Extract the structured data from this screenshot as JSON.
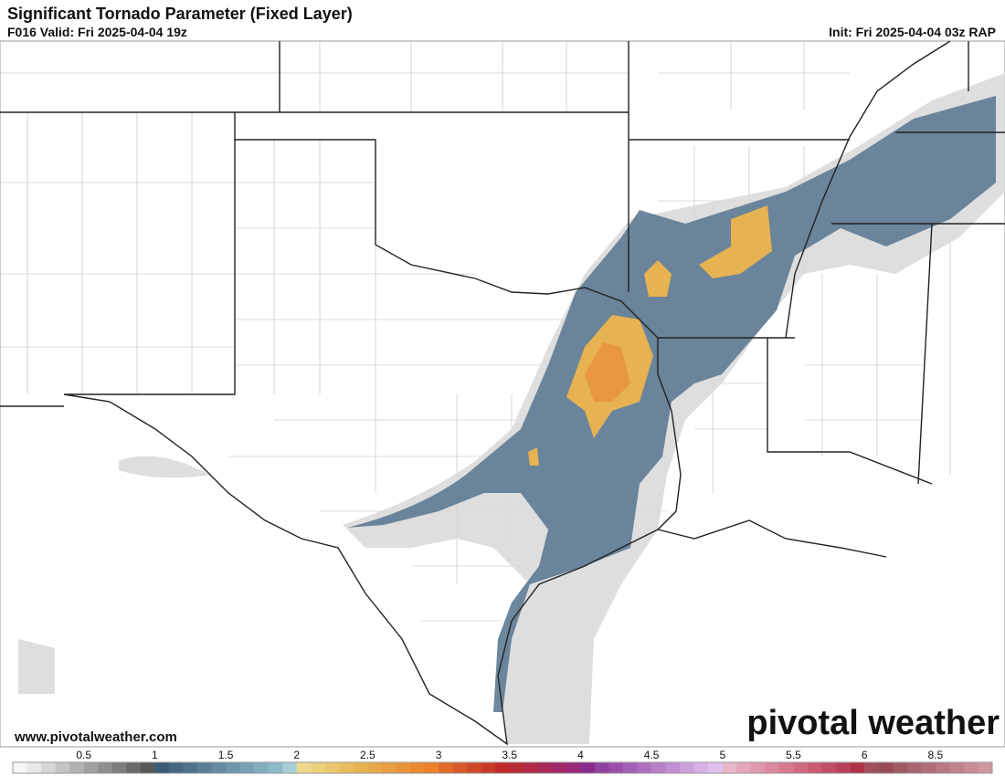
{
  "header": {
    "title": "Significant Tornado Parameter (Fixed Layer)",
    "valid": "F016 Valid: Fri 2025-04-04 19z",
    "init": "Init: Fri 2025-04-04 03z RAP"
  },
  "footer": {
    "website": "www.pivotalweather.com",
    "logo": "pivotal weather"
  },
  "colorbar": {
    "labels": [
      "0.5",
      "1",
      "1.5",
      "2",
      "2.5",
      "3",
      "3.5",
      "4",
      "4.5",
      "5",
      "5.5",
      "6",
      "8.5"
    ],
    "colors": [
      "#f7f7f7",
      "#e8e8e8",
      "#d6d6d6",
      "#c4c4c4",
      "#b2b2b2",
      "#a0a0a0",
      "#8e8e8e",
      "#7c7c7c",
      "#6a6a6a",
      "#585858",
      "#3c5a78",
      "#466682",
      "#50728c",
      "#5a7e96",
      "#648aa0",
      "#6e96aa",
      "#78a2b4",
      "#82aebe",
      "#8cbac8",
      "#a8cfd6",
      "#eed98a",
      "#ecd07c",
      "#eac66e",
      "#e8bc60",
      "#e6b252",
      "#e6a84a",
      "#e89e42",
      "#ea943a",
      "#ec8a32",
      "#ee802a",
      "#e06a28",
      "#d85a28",
      "#d04a28",
      "#c83a28",
      "#c02a28",
      "#b82a38",
      "#b02a48",
      "#a82a58",
      "#a02a68",
      "#982a78",
      "#8a2a8a",
      "#9040a0",
      "#9a50aa",
      "#a460b4",
      "#ae70be",
      "#b880c8",
      "#c290d2",
      "#cca0dc",
      "#d6b0e6",
      "#e0c0f0",
      "#e8b8c8",
      "#e4a8ba",
      "#e098ac",
      "#dc889e",
      "#d87890",
      "#d06a80",
      "#c85c72",
      "#c04e64",
      "#b84056",
      "#b03248",
      "#a0505a",
      "#9a4a55",
      "#a05a64",
      "#a86470",
      "#b06e7a",
      "#b87884",
      "#c0828e",
      "#c88c98",
      "#d096a2"
    ]
  }
}
